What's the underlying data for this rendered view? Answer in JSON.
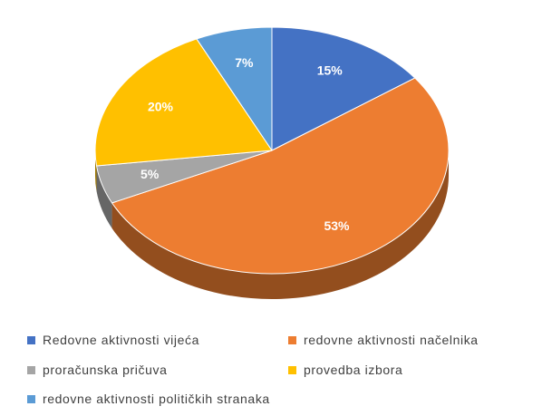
{
  "chart_data": {
    "type": "pie",
    "style": "3d",
    "categories": [
      "Redovne aktivnosti vijeća",
      "redovne aktivnosti načelnika",
      "proračunska pričuva",
      "provedba izbora",
      "redovne aktivnosti političkih stranaka"
    ],
    "values": [
      15,
      53,
      5,
      20,
      7
    ],
    "data_labels": [
      "15%",
      "53%",
      "5%",
      "20%",
      "7%"
    ],
    "colors": [
      "#4472C4",
      "#ED7D31",
      "#A5A5A5",
      "#FFC000",
      "#5B9BD5"
    ],
    "legend_position": "bottom",
    "title": "",
    "start_angle": "12 o'clock, clockwise"
  }
}
